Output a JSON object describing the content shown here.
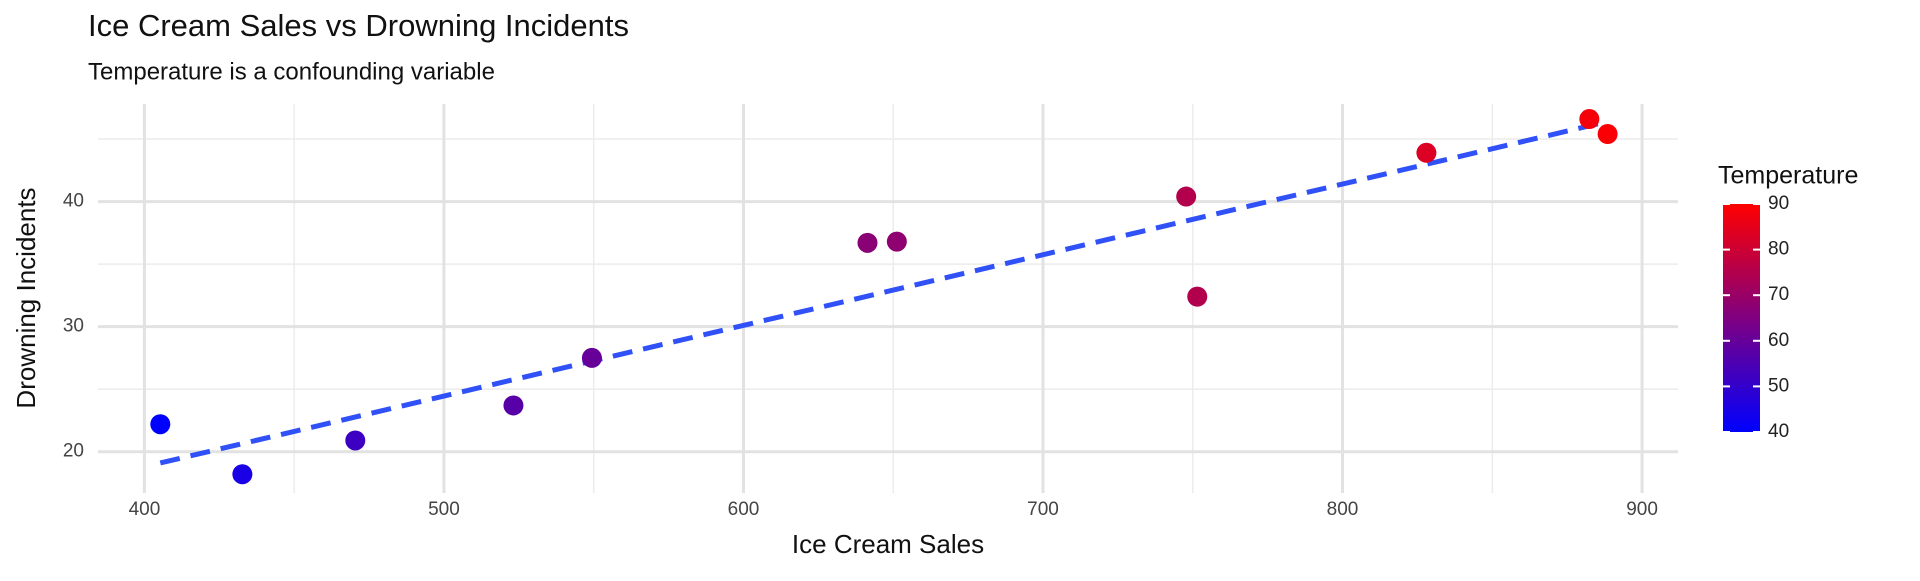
{
  "chart_data": {
    "type": "scatter",
    "title": "Ice Cream Sales vs Drowning Incidents",
    "subtitle": "Temperature is a confounding variable",
    "x_label": "Ice Cream Sales",
    "y_label": "Drowning Incidents",
    "series": [
      {
        "x": [
          405.3,
          432.7,
          470.4,
          523.2,
          549.4,
          641.4,
          651.2,
          747.8,
          751.5,
          828.0,
          882.4,
          888.5
        ],
        "values": [
          22.2,
          18.2,
          20.9,
          23.7,
          27.5,
          36.7,
          36.8,
          40.4,
          32.4,
          43.9,
          46.6,
          45.4
        ],
        "temperature": [
          40,
          45,
          52,
          57,
          60,
          67,
          68,
          75,
          75,
          83,
          88,
          89
        ]
      }
    ],
    "trend": {
      "x": [
        405.3,
        888.5
      ],
      "values": [
        19.1,
        46.4
      ],
      "color": "#3050f8"
    },
    "color_scale": {
      "title": "Temperature",
      "low_color": "#0000ff",
      "high_color": "#ff0000",
      "lim": [
        40,
        90
      ],
      "ticks": [
        40,
        50,
        60,
        70,
        80,
        90
      ]
    },
    "xlim": [
      384.5,
      912
    ],
    "ylim": [
      16.7,
      47.8
    ],
    "xticks": [
      400,
      500,
      600,
      700,
      800,
      900
    ],
    "yticks": [
      20,
      30,
      40
    ],
    "xminor": [
      450,
      550,
      650,
      750,
      850
    ],
    "yminor": [
      25,
      35,
      45
    ],
    "grid": true
  }
}
